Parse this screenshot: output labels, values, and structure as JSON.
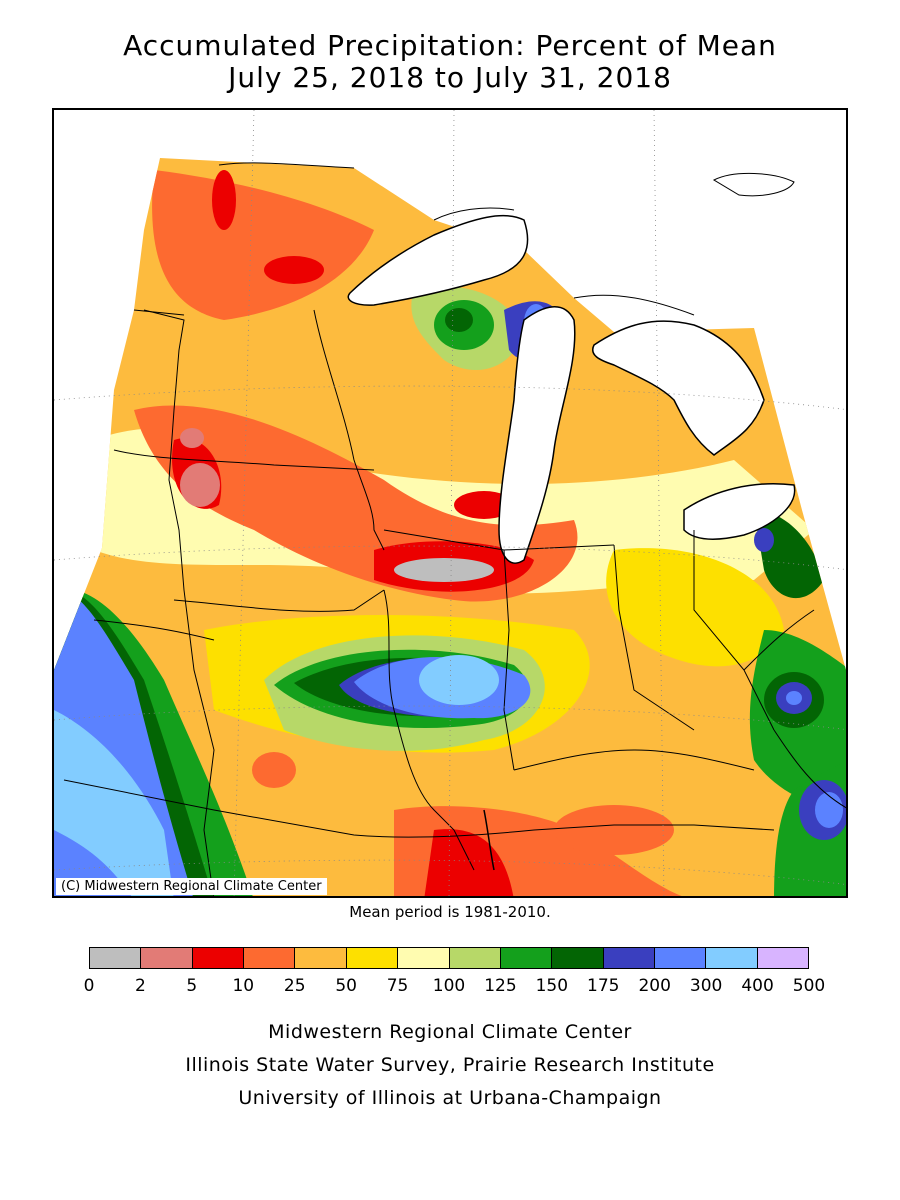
{
  "title_line1": "Accumulated Precipitation: Percent of Mean",
  "title_line2": "July 25, 2018 to July 31, 2018",
  "copyright": "(C) Midwestern Regional Climate Center",
  "mean_period": "Mean period is 1981-2010.",
  "legend": {
    "ticks": [
      "0",
      "2",
      "5",
      "10",
      "25",
      "50",
      "75",
      "100",
      "125",
      "150",
      "175",
      "200",
      "300",
      "400",
      "500"
    ],
    "colors": [
      "#bebebe",
      "#e27b76",
      "#ec0000",
      "#fd6a30",
      "#fdbb3e",
      "#fde000",
      "#fffcb0",
      "#b7d868",
      "#14a01c",
      "#036504",
      "#3a3fbf",
      "#5b82ff",
      "#82ccff",
      "#d8b4ff"
    ]
  },
  "credits": {
    "line1": "Midwestern Regional Climate Center",
    "line2": "Illinois State Water Survey, Prairie Research Institute",
    "line3": "University of Illinois at Urbana-Champaign"
  }
}
